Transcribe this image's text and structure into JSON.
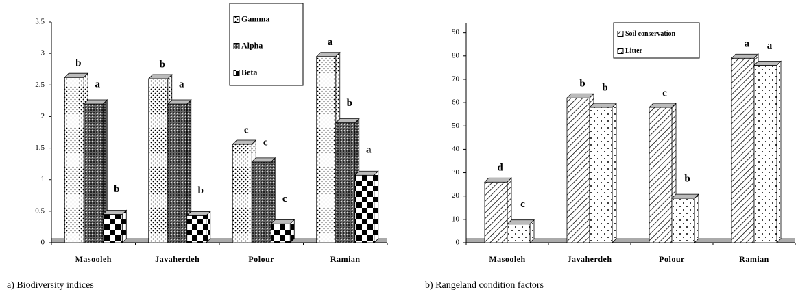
{
  "chart_data": [
    {
      "type": "bar",
      "caption": "a) Biodiversity indices",
      "categories": [
        "Masooleh",
        "Javaherdeh",
        "Polour",
        "Ramian"
      ],
      "series": [
        {
          "name": "Gamma",
          "pattern": "dots",
          "values": [
            2.62,
            2.6,
            1.56,
            2.95
          ],
          "letters": [
            "b",
            "b",
            "c",
            "a"
          ]
        },
        {
          "name": "Alpha",
          "pattern": "grid",
          "values": [
            2.2,
            2.2,
            1.28,
            1.9
          ],
          "letters": [
            "a",
            "a",
            "c",
            "b"
          ]
        },
        {
          "name": "Beta",
          "pattern": "checker",
          "values": [
            0.45,
            0.43,
            0.3,
            1.07
          ],
          "letters": [
            "b",
            "b",
            "c",
            "a"
          ]
        }
      ],
      "ylim": [
        0,
        3.5
      ],
      "yticks": [
        0,
        0.5,
        1,
        1.5,
        2,
        2.5,
        3,
        3.5
      ]
    },
    {
      "type": "bar",
      "caption": "b) Rangeland condition factors",
      "categories": [
        "Masooleh",
        "Javaherdeh",
        "Polour",
        "Ramian"
      ],
      "series": [
        {
          "name": "Soil conservation",
          "pattern": "hatch",
          "values": [
            26,
            62,
            58,
            79
          ],
          "letters": [
            "d",
            "b",
            "c",
            "a"
          ]
        },
        {
          "name": "Litter",
          "pattern": "sparse",
          "values": [
            8,
            58,
            19,
            76
          ],
          "letters": [
            "c",
            "b",
            "b",
            "a"
          ]
        }
      ],
      "ylim": [
        0,
        94
      ],
      "yticks": [
        0,
        10,
        20,
        30,
        40,
        50,
        60,
        70,
        80,
        90
      ]
    }
  ]
}
